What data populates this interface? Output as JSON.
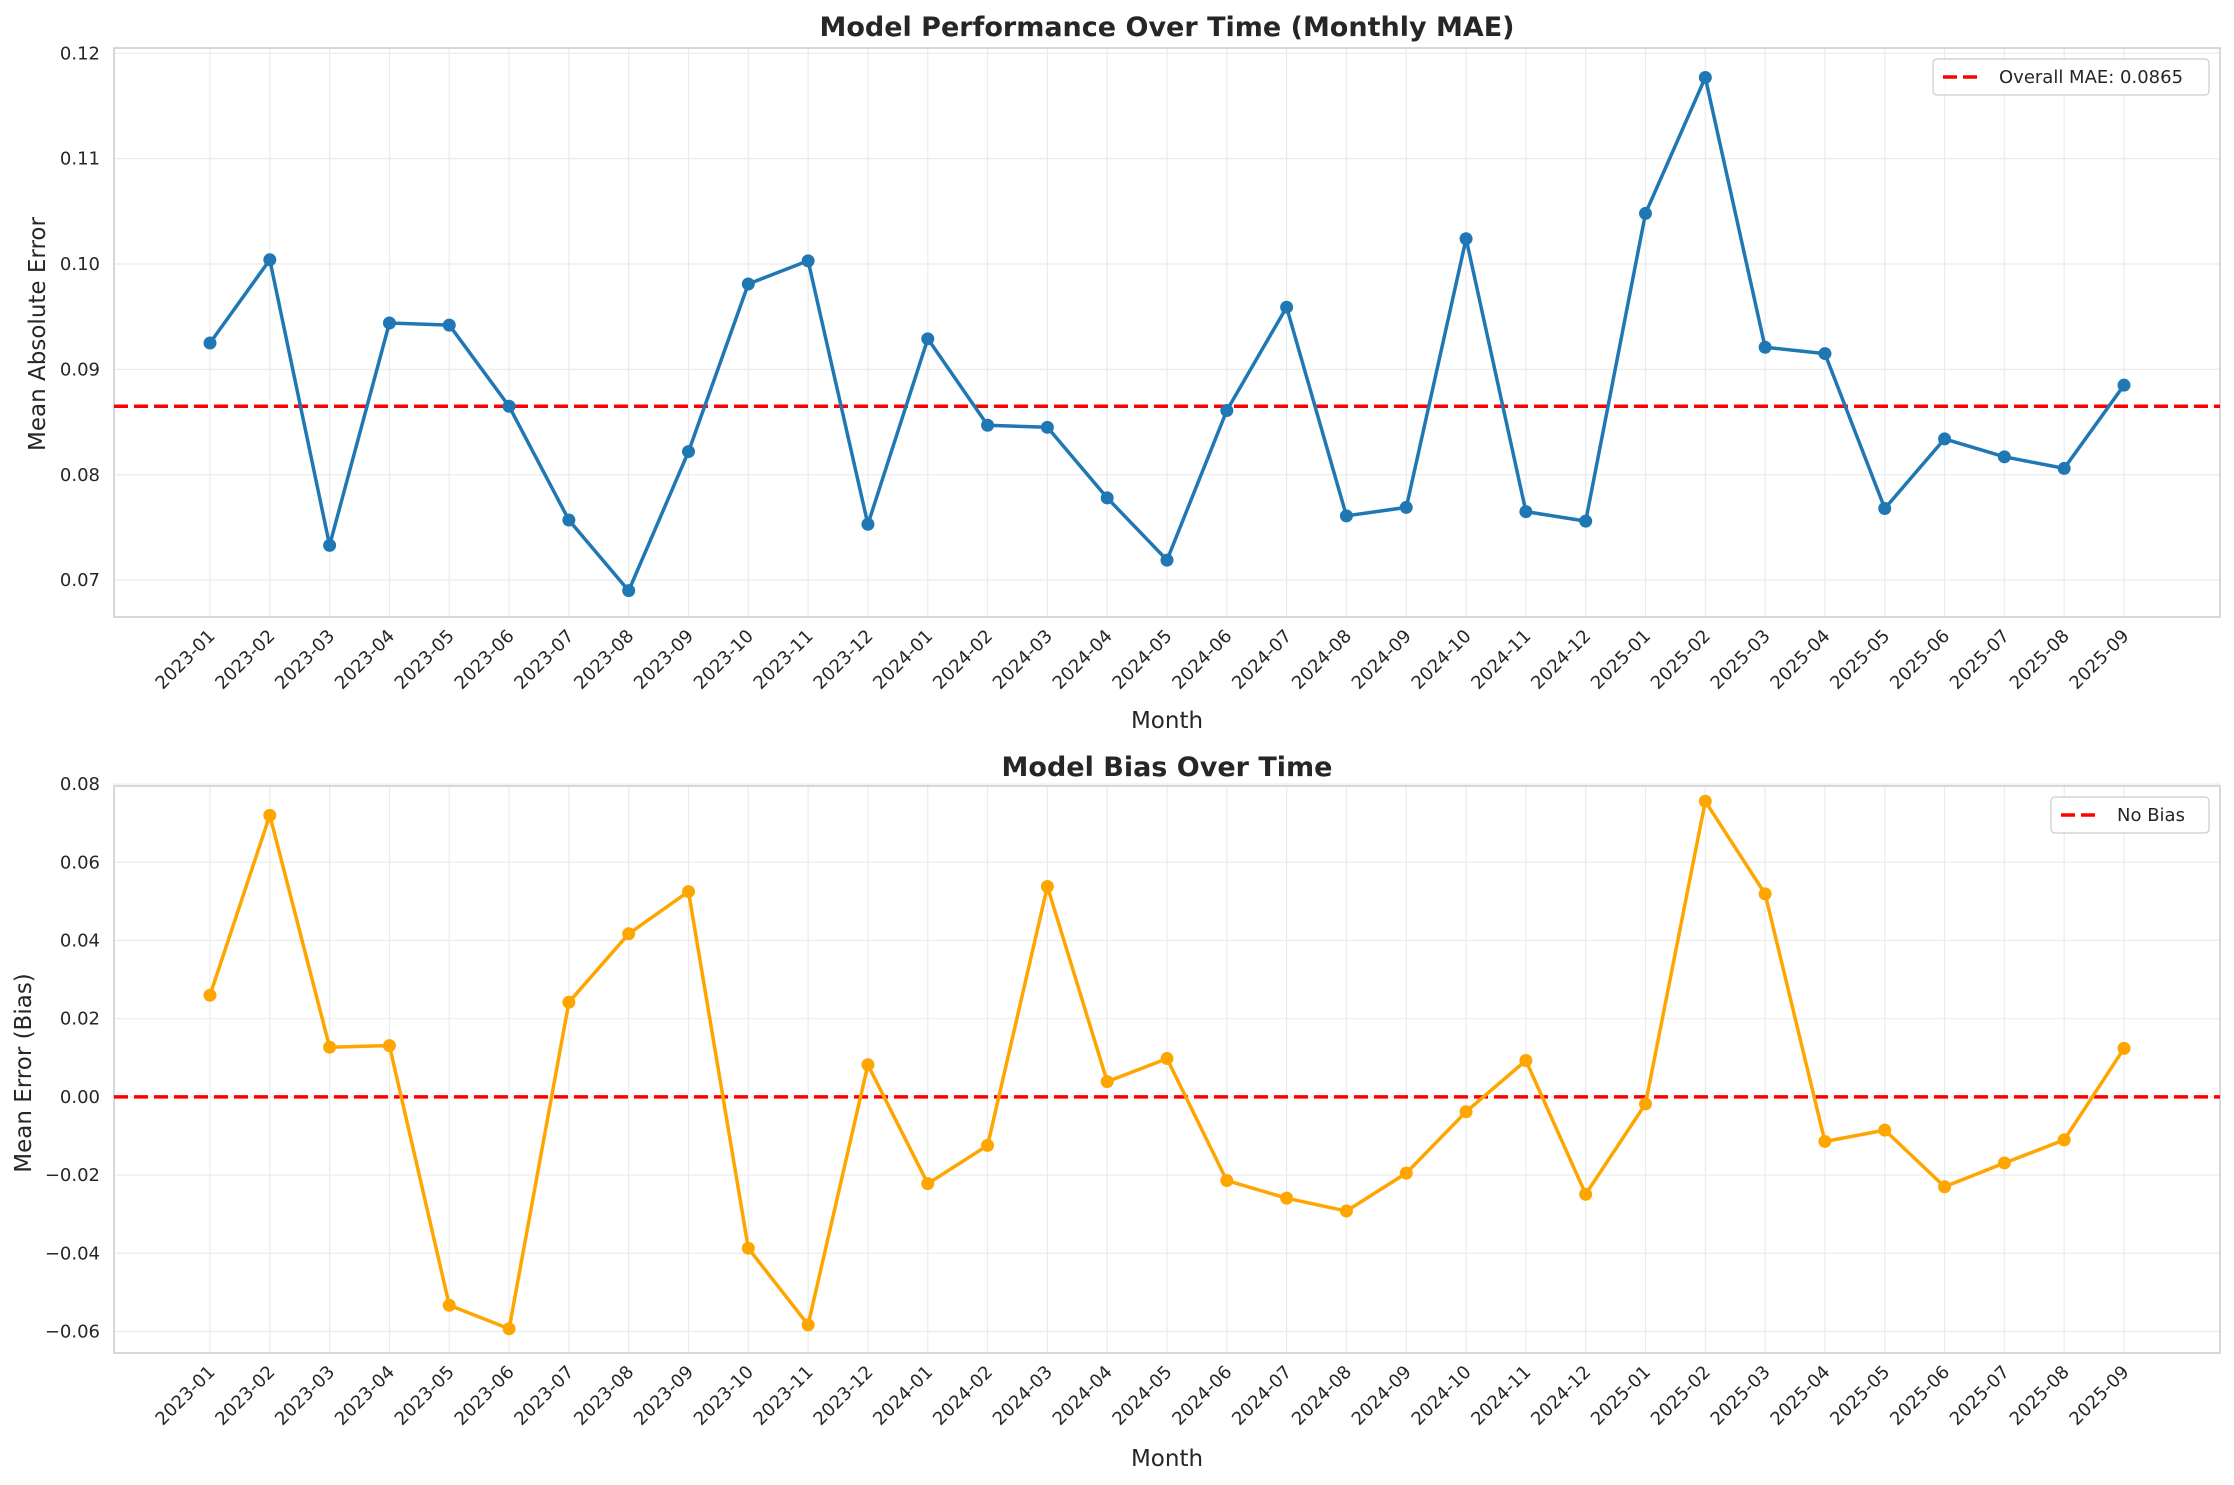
{
  "chart_data": [
    {
      "type": "line",
      "title": "Model Performance Over Time (Monthly MAE)",
      "xlabel": "Month",
      "ylabel": "Mean Absolute Error",
      "ylim": [
        0.0665,
        0.1205
      ],
      "yticks": [
        0.07,
        0.08,
        0.09,
        0.1,
        0.11,
        0.12
      ],
      "ytick_labels": [
        "0.07",
        "0.08",
        "0.09",
        "0.10",
        "0.11",
        "0.12"
      ],
      "grid": true,
      "legend_position": "top-right",
      "categories": [
        "2023-01",
        "2023-02",
        "2023-03",
        "2023-04",
        "2023-05",
        "2023-06",
        "2023-07",
        "2023-08",
        "2023-09",
        "2023-10",
        "2023-11",
        "2023-12",
        "2024-01",
        "2024-02",
        "2024-03",
        "2024-04",
        "2024-05",
        "2024-06",
        "2024-07",
        "2024-08",
        "2024-09",
        "2024-10",
        "2024-11",
        "2024-12",
        "2025-01",
        "2025-02",
        "2025-03",
        "2025-04",
        "2025-05",
        "2025-06",
        "2025-07",
        "2025-08",
        "2025-09"
      ],
      "series": [
        {
          "color": "#1f77b4",
          "values": [
            0.0925,
            0.1004,
            0.0733,
            0.0944,
            0.0942,
            0.0865,
            0.0757,
            0.069,
            0.0822,
            0.0981,
            0.1003,
            0.0753,
            0.0929,
            0.0847,
            0.0845,
            0.0778,
            0.0719,
            0.0861,
            0.0959,
            0.0761,
            0.0769,
            0.1024,
            0.0765,
            0.0756,
            0.1048,
            0.1177,
            0.0921,
            0.0915,
            0.0768,
            0.0834,
            0.0817,
            0.0806,
            0.0885
          ]
        }
      ],
      "reference_line": {
        "value": 0.0865,
        "label": "Overall MAE: 0.0865",
        "color": "#ff0000"
      }
    },
    {
      "type": "line",
      "title": "Model Bias Over Time",
      "xlabel": "Month",
      "ylabel": "Mean Error (Bias)",
      "ylim": [
        -0.0655,
        0.0795
      ],
      "yticks": [
        -0.06,
        -0.04,
        -0.02,
        0.0,
        0.02,
        0.04,
        0.06,
        0.08
      ],
      "ytick_labels": [
        "−0.06",
        "−0.04",
        "−0.02",
        "0.00",
        "0.02",
        "0.04",
        "0.06",
        "0.08"
      ],
      "grid": true,
      "legend_position": "top-right",
      "categories": [
        "2023-01",
        "2023-02",
        "2023-03",
        "2023-04",
        "2023-05",
        "2023-06",
        "2023-07",
        "2023-08",
        "2023-09",
        "2023-10",
        "2023-11",
        "2023-12",
        "2024-01",
        "2024-02",
        "2024-03",
        "2024-04",
        "2024-05",
        "2024-06",
        "2024-07",
        "2024-08",
        "2024-09",
        "2024-10",
        "2024-11",
        "2024-12",
        "2025-01",
        "2025-02",
        "2025-03",
        "2025-04",
        "2025-05",
        "2025-06",
        "2025-07",
        "2025-08",
        "2025-09"
      ],
      "series": [
        {
          "color": "#ffa500",
          "values": [
            0.026,
            0.072,
            0.0127,
            0.0131,
            -0.0533,
            -0.0593,
            0.0242,
            0.0417,
            0.0525,
            -0.0387,
            -0.0583,
            0.0082,
            -0.0222,
            -0.0124,
            0.0538,
            0.0039,
            0.0098,
            -0.0214,
            -0.0259,
            -0.0292,
            -0.0195,
            -0.0038,
            0.0093,
            -0.0249,
            -0.0018,
            0.0756,
            0.0519,
            -0.0114,
            -0.0085,
            -0.023,
            -0.0169,
            -0.011,
            0.0124
          ]
        }
      ],
      "reference_line": {
        "value": 0.0,
        "label": "No Bias",
        "color": "#ff0000"
      }
    }
  ]
}
